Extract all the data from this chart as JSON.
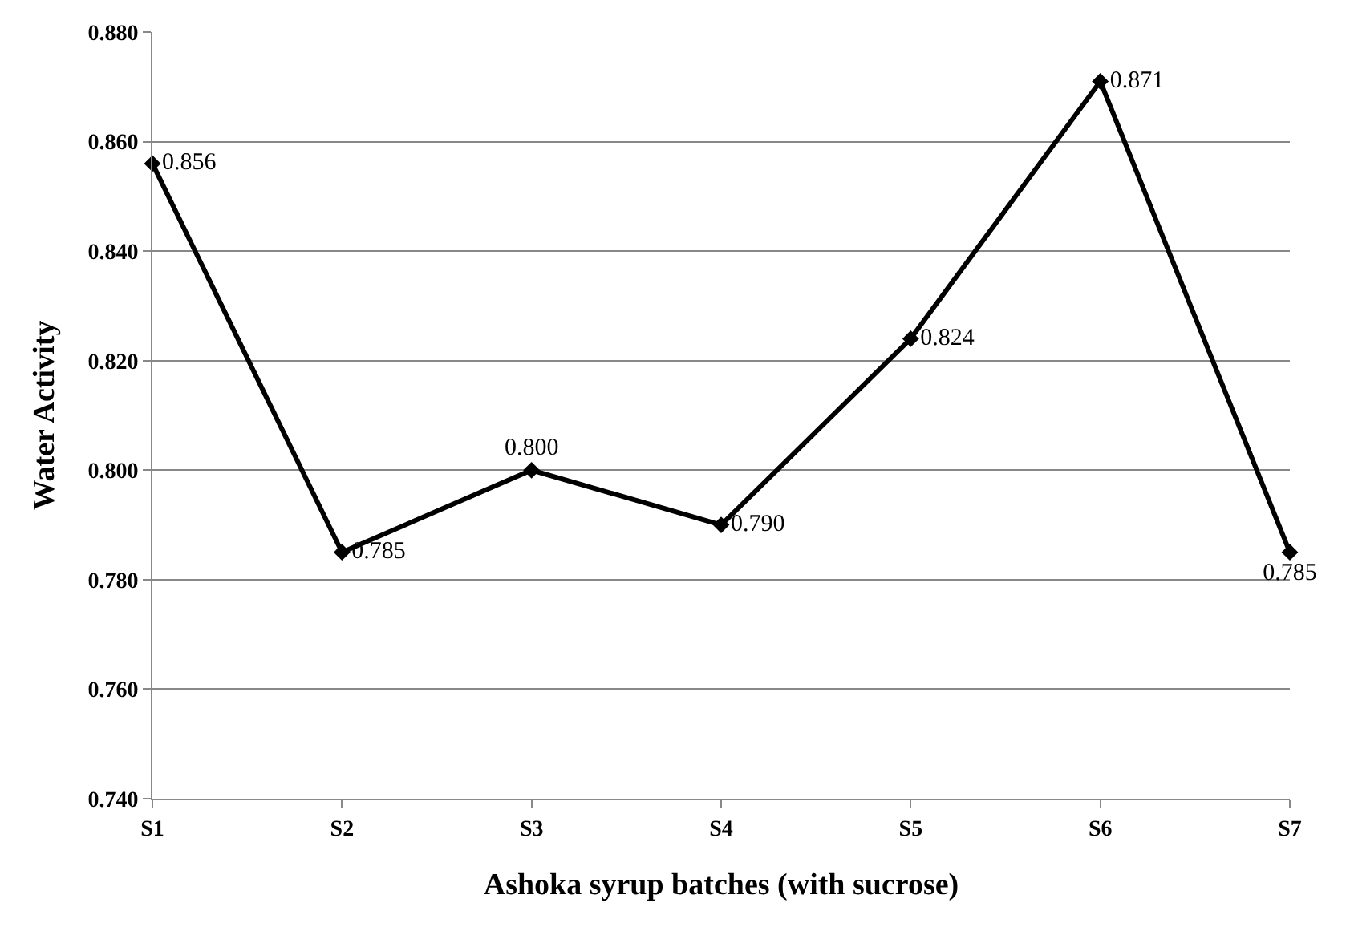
{
  "chart_data": {
    "type": "line",
    "xlabel": "Ashoka syrup batches (with sucrose)",
    "ylabel": "Water Activity",
    "categories": [
      "S1",
      "S2",
      "S3",
      "S4",
      "S5",
      "S6",
      "S7"
    ],
    "series": [
      {
        "color": "#000000",
        "values": [
          0.856,
          0.785,
          0.8,
          0.79,
          0.824,
          0.871,
          0.785
        ],
        "value_labels": [
          "0.856",
          "0.785",
          "0.800",
          "0.790",
          "0.824",
          "0.871",
          "0.785"
        ]
      }
    ],
    "ylim": [
      0.74,
      0.88
    ],
    "yticks": [
      {
        "value": 0.74,
        "label": "0.740"
      },
      {
        "value": 0.76,
        "label": "0.760"
      },
      {
        "value": 0.78,
        "label": "0.780"
      },
      {
        "value": 0.8,
        "label": "0.800"
      },
      {
        "value": 0.82,
        "label": "0.820"
      },
      {
        "value": 0.84,
        "label": "0.840"
      },
      {
        "value": 0.86,
        "label": "0.860"
      },
      {
        "value": 0.88,
        "label": "0.880"
      }
    ],
    "grid": "y",
    "legend": false,
    "marker": "diamond",
    "line_style": "solid"
  }
}
